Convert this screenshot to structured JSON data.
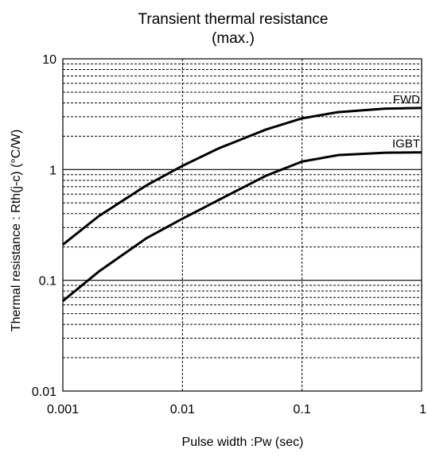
{
  "chart_data": {
    "type": "line",
    "title": "Transient thermal resistance",
    "subtitle": "(max.)",
    "xlabel": "Pulse width :Pw (sec)",
    "ylabel": "Thermal resistance : Rth(j-c)   (°C/W)",
    "x_scale": "log",
    "y_scale": "log",
    "xlim": [
      0.001,
      1
    ],
    "ylim": [
      0.01,
      10
    ],
    "x_ticks": [
      "0.001",
      "0.01",
      "0.1",
      "1"
    ],
    "y_ticks": [
      "0.01",
      "0.1",
      "1",
      "10"
    ],
    "grid": true,
    "series": [
      {
        "name": "FWD",
        "x": [
          0.001,
          0.002,
          0.005,
          0.01,
          0.02,
          0.05,
          0.1,
          0.2,
          0.5,
          1
        ],
        "y": [
          0.21,
          0.38,
          0.72,
          1.08,
          1.55,
          2.3,
          2.9,
          3.3,
          3.55,
          3.6
        ]
      },
      {
        "name": "IGBT",
        "x": [
          0.001,
          0.002,
          0.005,
          0.01,
          0.02,
          0.05,
          0.1,
          0.2,
          0.5,
          1
        ],
        "y": [
          0.065,
          0.12,
          0.24,
          0.36,
          0.53,
          0.88,
          1.18,
          1.35,
          1.42,
          1.43
        ]
      }
    ]
  }
}
